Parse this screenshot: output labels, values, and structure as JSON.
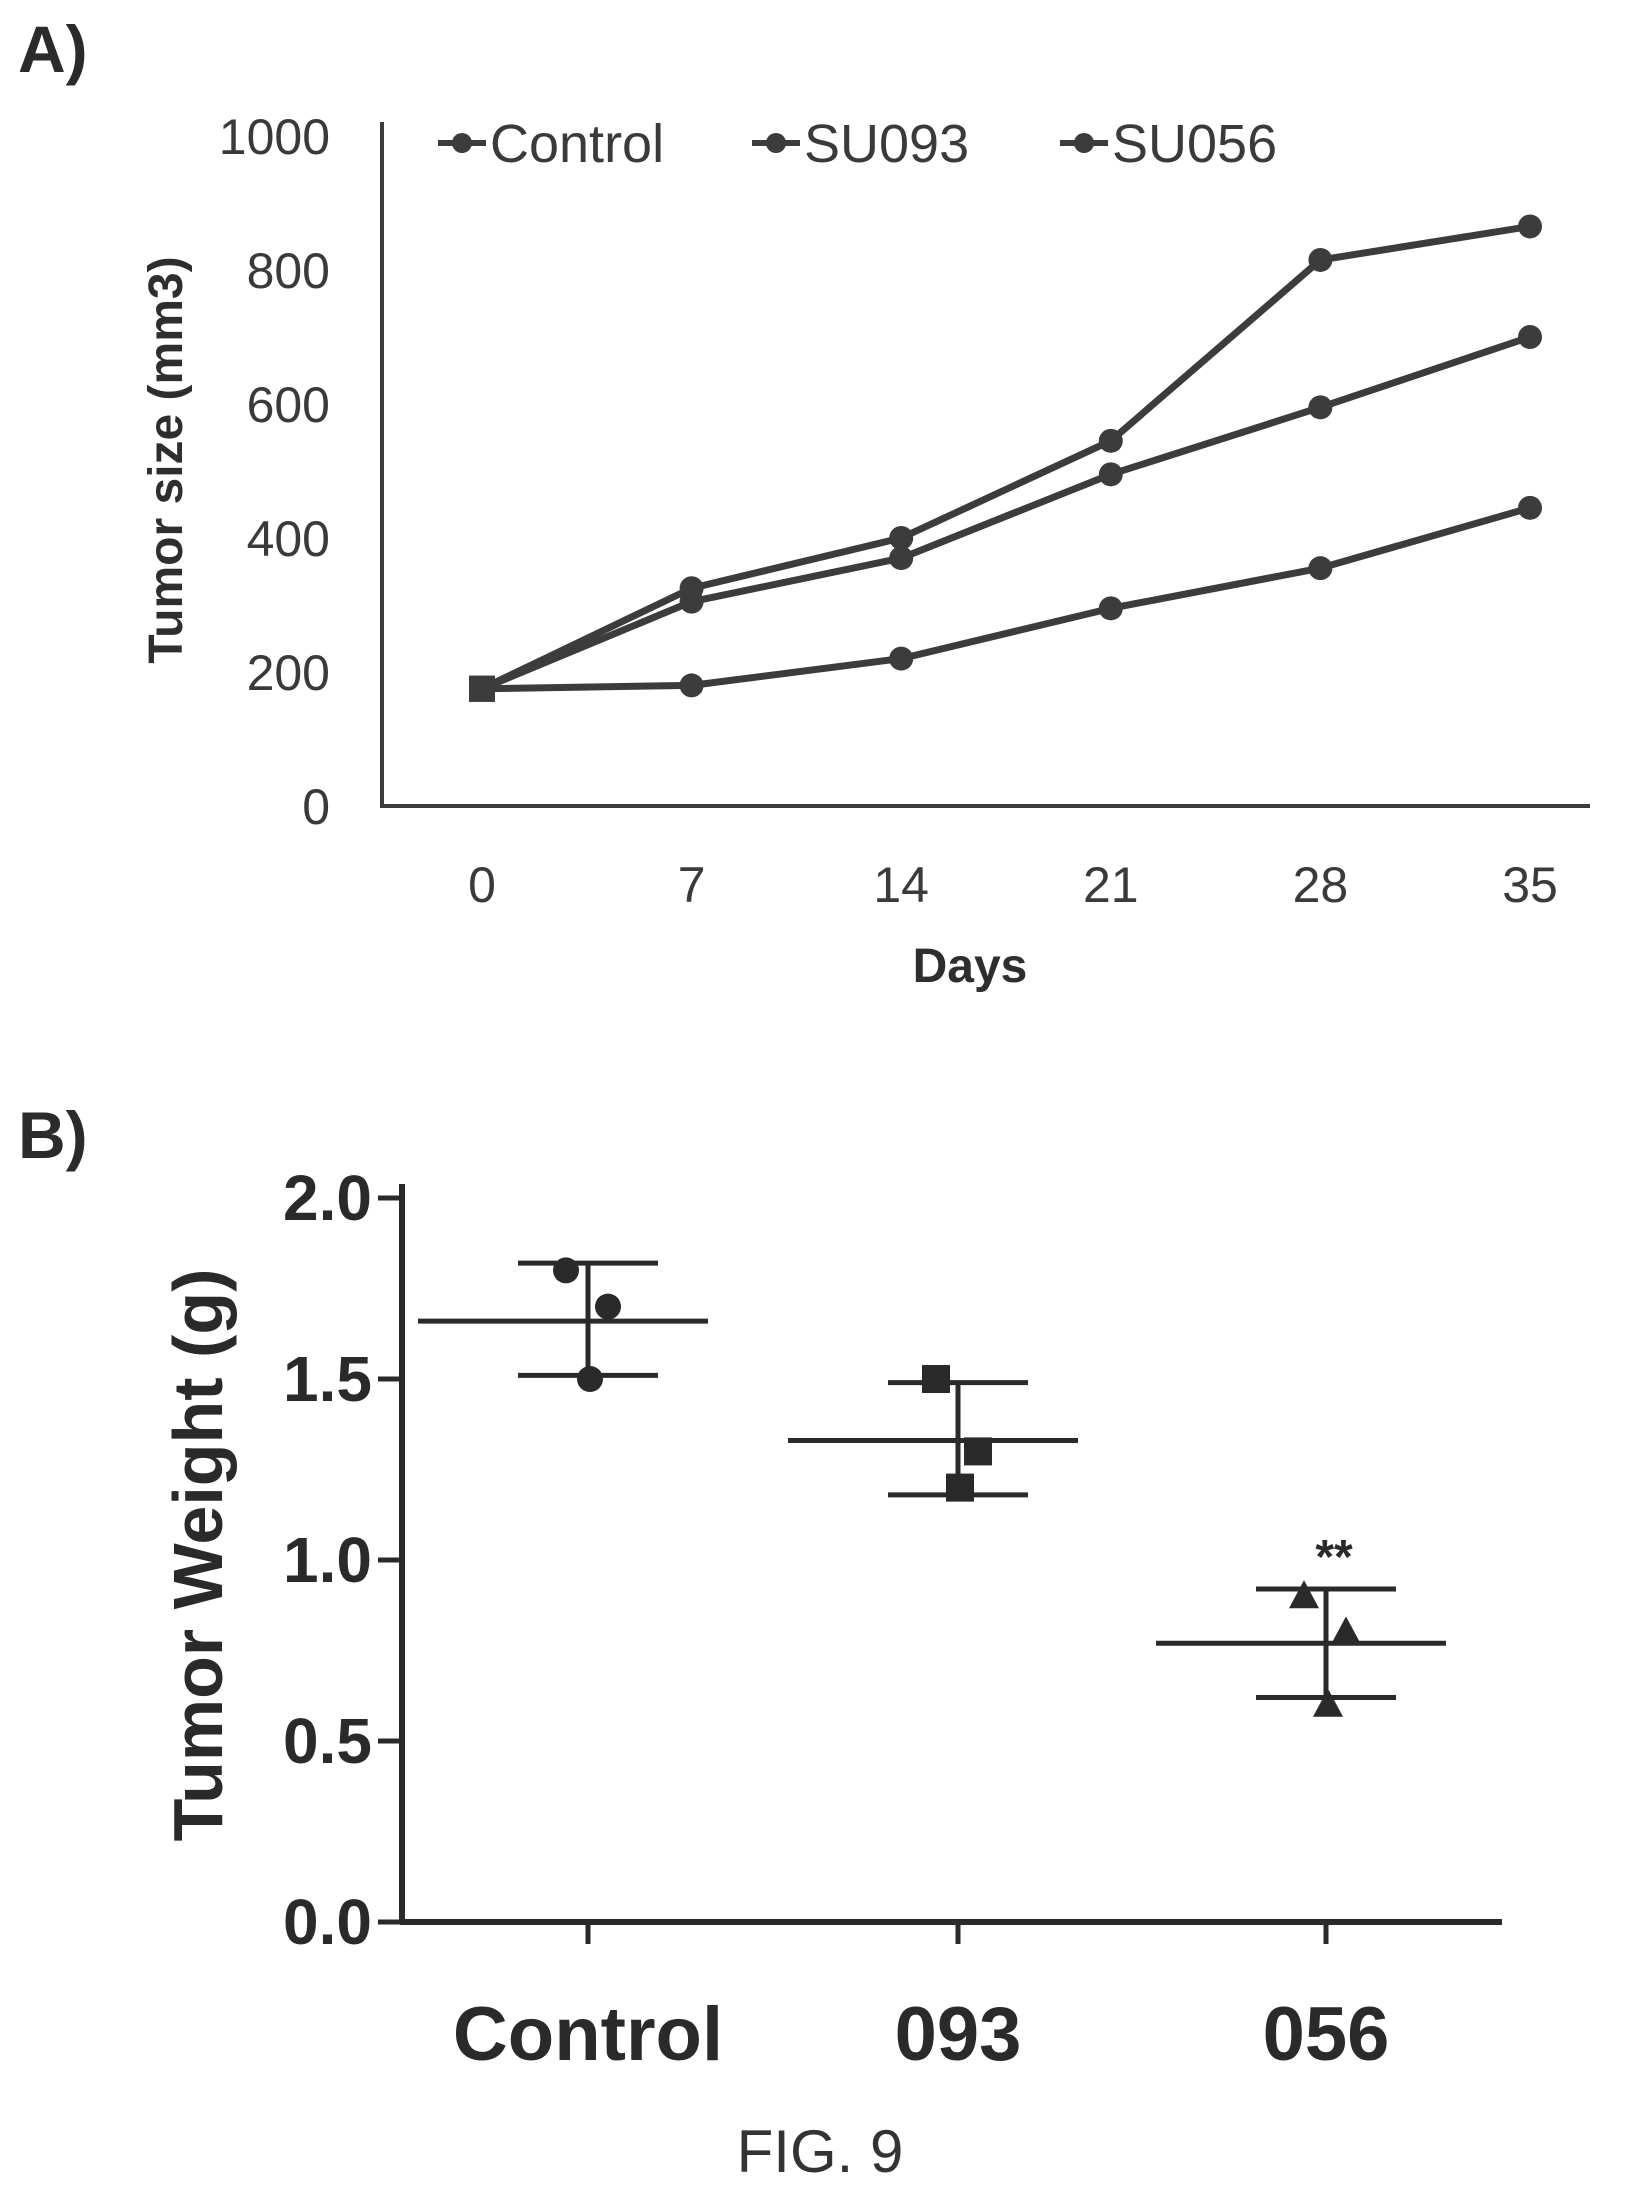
{
  "chart_data": [
    {
      "panel": "A)",
      "type": "line",
      "x": [
        0,
        7,
        14,
        21,
        28,
        35
      ],
      "xlabel": "Days",
      "ylabel": "Tumor size (mm3)",
      "ylim": [
        0,
        1000
      ],
      "yticks": [
        0,
        200,
        400,
        600,
        800,
        1000
      ],
      "grid": false,
      "legend": "top",
      "series": [
        {
          "name": "Control",
          "values": [
            175,
            325,
            400,
            545,
            815,
            865
          ]
        },
        {
          "name": "SU093",
          "values": [
            175,
            305,
            370,
            495,
            595,
            700
          ]
        },
        {
          "name": "SU056",
          "values": [
            175,
            180,
            220,
            295,
            355,
            445
          ]
        }
      ]
    },
    {
      "panel": "B)",
      "type": "scatter",
      "categories": [
        "Control",
        "093",
        "056"
      ],
      "ylabel": "Tumor Weight (g)",
      "ylim": [
        0,
        2.0
      ],
      "yticks": [
        "0.0",
        "0.5",
        "1.0",
        "1.5",
        "2.0"
      ],
      "grid": false,
      "groups": [
        {
          "category": "Control",
          "marker": "circle",
          "points": [
            1.8,
            1.7,
            1.5
          ],
          "mean": 1.66,
          "sd_upper": 1.82,
          "sd_lower": 1.51,
          "annotation": ""
        },
        {
          "category": "093",
          "marker": "square",
          "points": [
            1.5,
            1.3,
            1.2
          ],
          "mean": 1.33,
          "sd_upper": 1.49,
          "sd_lower": 1.18,
          "annotation": ""
        },
        {
          "category": "056",
          "marker": "triangle",
          "points": [
            0.9,
            0.8,
            0.6
          ],
          "mean": 0.77,
          "sd_upper": 0.92,
          "sd_lower": 0.62,
          "annotation": "**"
        }
      ]
    }
  ],
  "figure_caption": "FIG. 9",
  "colors": {
    "ink": "#3c3c3c",
    "dark": "#2a2a2a",
    "background": "#ffffff"
  }
}
